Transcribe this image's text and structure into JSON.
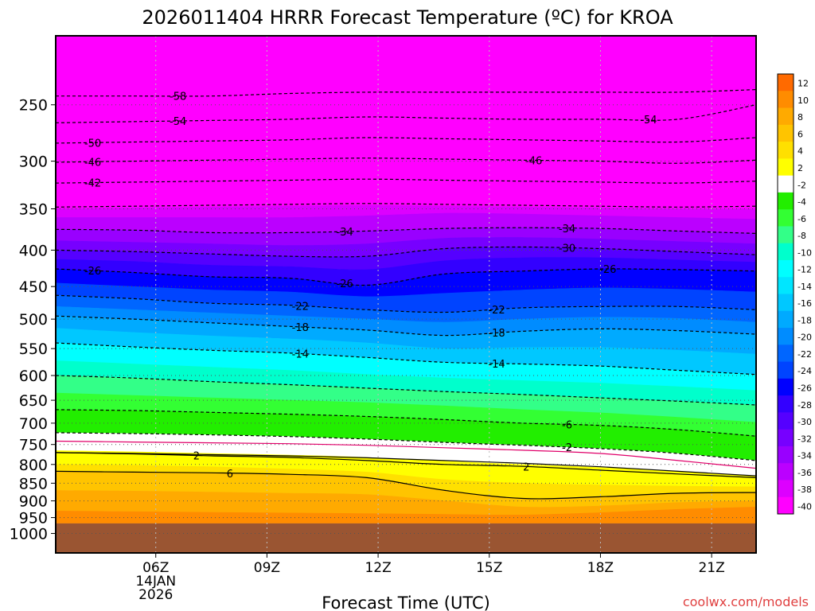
{
  "chart_data": {
    "type": "heatmap",
    "title": "2026011404 HRRR Forecast Temperature (ºC) for KROA",
    "xlabel": "Forecast Time (UTC)",
    "ylabel": "",
    "credit": "coolwx.com/models",
    "x_range_hours": [
      3.3,
      22.2
    ],
    "x_ticks": [
      {
        "hour": 6,
        "label": "06Z",
        "sub": [
          "14JAN",
          "2026"
        ]
      },
      {
        "hour": 9,
        "label": "09Z",
        "sub": []
      },
      {
        "hour": 12,
        "label": "12Z",
        "sub": []
      },
      {
        "hour": 15,
        "label": "15Z",
        "sub": []
      },
      {
        "hour": 18,
        "label": "18Z",
        "sub": []
      },
      {
        "hour": 21,
        "label": "21Z",
        "sub": []
      }
    ],
    "y_scale": "log-pressure, inverted (hPa)",
    "y_range_hpa": [
      1065,
      200
    ],
    "y_ticks": [
      250,
      300,
      350,
      400,
      450,
      500,
      550,
      600,
      650,
      700,
      750,
      800,
      850,
      900,
      950,
      1000
    ],
    "ground_top_hpa": 968,
    "ground_color": "#9a5532",
    "color_scale": {
      "labels": [
        "12",
        "10",
        "8",
        "6",
        "4",
        "2",
        "-2",
        "-4",
        "-6",
        "-8",
        "-10",
        "-12",
        "-14",
        "-16",
        "-18",
        "-20",
        "-22",
        "-24",
        "-26",
        "-28",
        "-30",
        "-32",
        "-34",
        "-36",
        "-38",
        "-40"
      ],
      "colors": [
        "#ff6a00",
        "#ff8c00",
        "#ffaa00",
        "#ffc400",
        "#ffe000",
        "#ffff00",
        "#ffffff",
        "#22ee00",
        "#33ff33",
        "#33ff88",
        "#00ffcc",
        "#00ffff",
        "#00e6ff",
        "#00c8ff",
        "#00aaff",
        "#008cff",
        "#0066ff",
        "#0044ff",
        "#0000ff",
        "#3300ff",
        "#5500ff",
        "#7700ff",
        "#9900ff",
        "#bb00ff",
        "#dd00ff",
        "#ff00ff"
      ]
    },
    "contours": [
      {
        "label": "-58",
        "pressure": [
          243,
          243,
          243,
          241,
          240,
          240,
          240,
          240,
          240,
          238
        ],
        "label_hour": 6.6
      },
      {
        "label": "-54",
        "pressure": [
          265,
          264,
          263,
          262,
          260,
          261,
          262,
          262,
          262,
          250
        ],
        "label_hour": 6.6,
        "label2_hour": 19.3
      },
      {
        "label": "-50",
        "pressure": [
          283,
          282,
          281,
          280,
          278,
          279,
          280,
          281,
          282,
          278
        ],
        "label_hour": 4.3
      },
      {
        "label": "-46",
        "pressure": [
          301,
          300,
          299,
          298,
          297,
          298,
          299,
          300,
          302,
          299
        ],
        "label_hour": 4.3,
        "label2_hour": 16.2
      },
      {
        "label": "-42",
        "pressure": [
          322,
          321,
          320,
          319,
          318,
          319,
          320,
          321,
          322,
          320
        ],
        "label_hour": 4.3
      },
      {
        "label": "-38",
        "pressure": [
          348,
          347,
          346,
          345,
          344,
          345,
          346,
          347,
          348,
          347
        ]
      },
      {
        "label": "-34",
        "pressure": [
          374,
          375,
          378,
          378,
          376,
          373,
          372,
          373,
          376,
          379
        ],
        "label_hour": 11.1,
        "label2_hour": 17.1
      },
      {
        "label": "-30",
        "pressure": [
          400,
          402,
          405,
          408,
          408,
          398,
          396,
          398,
          402,
          406
        ],
        "label_hour": 17.1
      },
      {
        "label": "-26",
        "pressure": [
          425,
          430,
          436,
          438,
          448,
          432,
          428,
          425,
          426,
          428
        ],
        "label_hour": 4.3,
        "label2_hour": 11.1,
        "label3_hour": 18.2
      },
      {
        "label": "-22",
        "pressure": [
          463,
          468,
          475,
          478,
          485,
          489,
          482,
          480,
          480,
          485
        ],
        "label_hour": 9.9,
        "label2_hour": 15.2
      },
      {
        "label": "-18",
        "pressure": [
          495,
          500,
          506,
          512,
          518,
          527,
          520,
          516,
          519,
          525
        ],
        "label_hour": 9.9,
        "label2_hour": 15.2
      },
      {
        "label": "-14",
        "pressure": [
          540,
          547,
          553,
          558,
          566,
          575,
          578,
          582,
          590,
          598
        ],
        "label_hour": 9.9,
        "label2_hour": 15.2
      },
      {
        "label": "-10",
        "pressure": [
          600,
          605,
          612,
          618,
          625,
          632,
          638,
          645,
          652,
          660
        ]
      },
      {
        "label": "-6",
        "pressure": [
          670,
          672,
          676,
          680,
          685,
          692,
          700,
          705,
          715,
          730
        ],
        "label_hour": 17.1
      },
      {
        "label": "-2",
        "pressure": [
          722,
          724,
          727,
          731,
          737,
          745,
          752,
          760,
          772,
          790
        ],
        "label_hour": 17.1
      },
      {
        "label": "0",
        "pressure": [
          742,
          744,
          746,
          748,
          752,
          758,
          764,
          772,
          790,
          810
        ],
        "color": "#e0006a"
      },
      {
        "label": "2",
        "pressure": [
          770,
          773,
          778,
          782,
          790,
          800,
          805,
          815,
          825,
          835
        ],
        "color": "#000000",
        "dash": "none",
        "label_hour": 7.1,
        "label2_hour": 16.0
      },
      {
        "label": "2b",
        "pressure": [
          770,
          772,
          775,
          778,
          783,
          790,
          797,
          806,
          818,
          830
        ],
        "color": "#000000",
        "dash": "none",
        "hide_label": true
      },
      {
        "label": "6",
        "pressure": [
          818,
          820,
          822,
          826,
          835,
          870,
          893,
          888,
          878,
          876
        ],
        "color": "#000000",
        "dash": "none",
        "label_hour": 8.0
      }
    ],
    "fill_bands": [
      {
        "color": "#ff00ff",
        "top": [
          200,
          200,
          200,
          200,
          200,
          200,
          200,
          200,
          200,
          200
        ],
        "bottom": [
          350,
          349,
          348,
          347,
          346,
          347,
          348,
          349,
          350,
          350
        ]
      },
      {
        "color": "#dd00ff",
        "top": [
          350,
          349,
          348,
          347,
          346,
          347,
          348,
          349,
          350,
          350
        ],
        "bottom": [
          360,
          360,
          360,
          360,
          358,
          355,
          356,
          358,
          360,
          362
        ]
      },
      {
        "color": "#bb00ff",
        "top": [
          360,
          360,
          360,
          360,
          358,
          355,
          356,
          358,
          360,
          362
        ],
        "bottom": [
          374,
          375,
          378,
          378,
          376,
          373,
          372,
          373,
          376,
          379
        ]
      },
      {
        "color": "#9900ff",
        "top": [
          374,
          375,
          378,
          378,
          376,
          373,
          372,
          373,
          376,
          379
        ],
        "bottom": [
          388,
          390,
          392,
          394,
          392,
          385,
          384,
          386,
          389,
          392
        ]
      },
      {
        "color": "#7700ff",
        "top": [
          388,
          390,
          392,
          394,
          392,
          385,
          384,
          386,
          389,
          392
        ],
        "bottom": [
          400,
          402,
          405,
          408,
          408,
          398,
          396,
          398,
          402,
          406
        ]
      },
      {
        "color": "#5500ff",
        "top": [
          400,
          402,
          405,
          408,
          408,
          398,
          396,
          398,
          402,
          406
        ],
        "bottom": [
          412,
          415,
          420,
          422,
          426,
          414,
          410,
          410,
          413,
          416
        ]
      },
      {
        "color": "#3300ff",
        "top": [
          412,
          415,
          420,
          422,
          426,
          414,
          410,
          410,
          413,
          416
        ],
        "bottom": [
          425,
          430,
          436,
          438,
          448,
          432,
          428,
          425,
          426,
          428
        ]
      },
      {
        "color": "#0000ff",
        "top": [
          425,
          430,
          436,
          438,
          448,
          432,
          428,
          425,
          426,
          428
        ],
        "bottom": [
          445,
          450,
          455,
          458,
          465,
          460,
          455,
          452,
          454,
          458
        ]
      },
      {
        "color": "#0044ff",
        "top": [
          445,
          450,
          455,
          458,
          465,
          460,
          455,
          452,
          454,
          458
        ],
        "bottom": [
          463,
          468,
          475,
          478,
          485,
          489,
          482,
          480,
          480,
          485
        ]
      },
      {
        "color": "#0066ff",
        "top": [
          463,
          468,
          475,
          478,
          485,
          489,
          482,
          480,
          480,
          485
        ],
        "bottom": [
          480,
          485,
          490,
          495,
          500,
          505,
          500,
          497,
          499,
          505
        ]
      },
      {
        "color": "#008cff",
        "top": [
          480,
          485,
          490,
          495,
          500,
          505,
          500,
          497,
          499,
          505
        ],
        "bottom": [
          495,
          500,
          506,
          512,
          518,
          527,
          520,
          516,
          519,
          525
        ]
      },
      {
        "color": "#00aaff",
        "top": [
          495,
          500,
          506,
          512,
          518,
          527,
          520,
          516,
          519,
          525
        ],
        "bottom": [
          515,
          522,
          528,
          533,
          540,
          550,
          548,
          548,
          553,
          560
        ]
      },
      {
        "color": "#00c8ff",
        "top": [
          515,
          522,
          528,
          533,
          540,
          550,
          548,
          548,
          553,
          560
        ],
        "bottom": [
          540,
          547,
          553,
          558,
          566,
          575,
          578,
          582,
          590,
          598
        ]
      },
      {
        "color": "#00ffff",
        "top": [
          540,
          547,
          553,
          558,
          566,
          575,
          578,
          582,
          590,
          598
        ],
        "bottom": [
          572,
          578,
          584,
          590,
          598,
          605,
          610,
          615,
          622,
          630
        ]
      },
      {
        "color": "#00ffcc",
        "top": [
          572,
          578,
          584,
          590,
          598,
          605,
          610,
          615,
          622,
          630
        ],
        "bottom": [
          600,
          605,
          612,
          618,
          625,
          632,
          638,
          645,
          652,
          660
        ]
      },
      {
        "color": "#33ff88",
        "top": [
          600,
          605,
          612,
          618,
          625,
          632,
          638,
          645,
          652,
          660
        ],
        "bottom": [
          635,
          640,
          645,
          650,
          655,
          662,
          670,
          677,
          687,
          698
        ]
      },
      {
        "color": "#33ff33",
        "top": [
          635,
          640,
          645,
          650,
          655,
          662,
          670,
          677,
          687,
          698
        ],
        "bottom": [
          670,
          672,
          676,
          680,
          685,
          692,
          700,
          705,
          715,
          730
        ]
      },
      {
        "color": "#22ee00",
        "top": [
          670,
          672,
          676,
          680,
          685,
          692,
          700,
          705,
          715,
          730
        ],
        "bottom": [
          722,
          724,
          727,
          731,
          737,
          745,
          752,
          760,
          772,
          790
        ]
      },
      {
        "color": "#ffffff",
        "top": [
          722,
          724,
          727,
          731,
          737,
          745,
          752,
          760,
          772,
          790
        ],
        "bottom": [
          765,
          768,
          772,
          776,
          782,
          792,
          800,
          808,
          818,
          830
        ]
      },
      {
        "color": "#ffff00",
        "top": [
          765,
          768,
          772,
          776,
          782,
          792,
          800,
          808,
          818,
          830
        ],
        "bottom": [
          800,
          802,
          806,
          812,
          820,
          840,
          850,
          855,
          858,
          860
        ]
      },
      {
        "color": "#ffe000",
        "top": [
          800,
          802,
          806,
          812,
          820,
          840,
          850,
          855,
          858,
          860
        ],
        "bottom": [
          818,
          820,
          822,
          826,
          835,
          870,
          893,
          888,
          878,
          876
        ]
      },
      {
        "color": "#ffc400",
        "top": [
          818,
          820,
          822,
          826,
          835,
          870,
          893,
          888,
          878,
          876
        ],
        "bottom": [
          870,
          872,
          875,
          878,
          882,
          900,
          918,
          915,
          905,
          900
        ]
      },
      {
        "color": "#ffaa00",
        "top": [
          870,
          872,
          875,
          878,
          882,
          900,
          918,
          915,
          905,
          900
        ],
        "bottom": [
          930,
          932,
          934,
          936,
          938,
          940,
          942,
          935,
          925,
          918
        ]
      },
      {
        "color": "#ff8c00",
        "top": [
          930,
          932,
          934,
          936,
          938,
          940,
          942,
          935,
          925,
          918
        ],
        "bottom": [
          968,
          968,
          968,
          968,
          968,
          968,
          968,
          968,
          968,
          968
        ]
      }
    ],
    "band_hours": [
      3.3,
      5.4,
      7.5,
      9.6,
      11.7,
      13.8,
      15.9,
      18.0,
      20.1,
      22.2
    ],
    "legend_placement": "right"
  }
}
